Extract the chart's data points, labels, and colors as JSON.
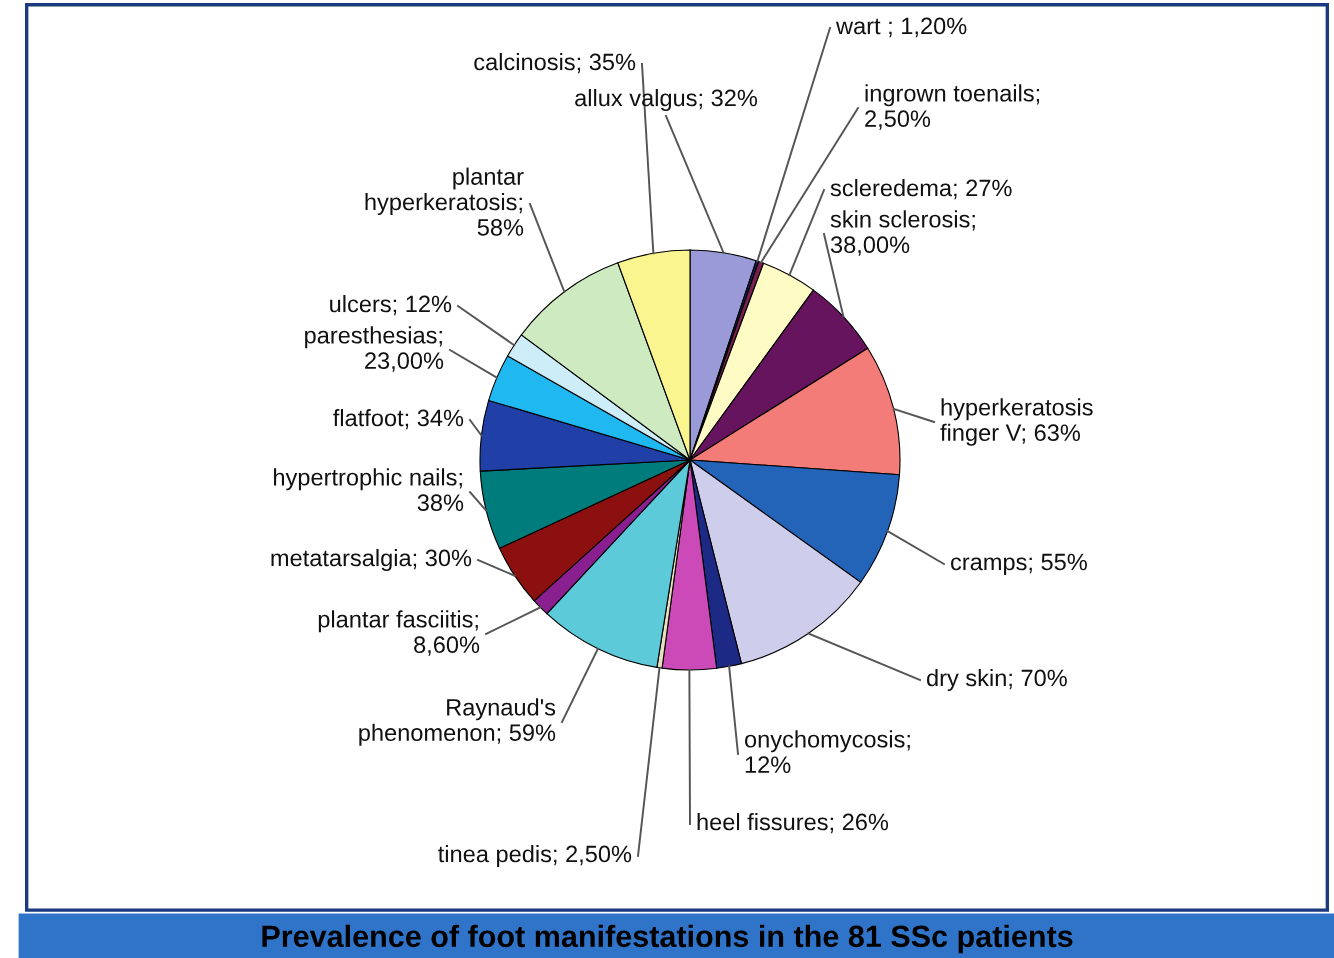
{
  "chart_data": {
    "type": "pie",
    "title": "Prevalence of foot manifestations in the 81 SSc patients",
    "categories": [
      "allux valgus; 32%",
      "wart ; 1,20%",
      "ingrown toenails;\n2,50%",
      "scleredema; 27%",
      "skin sclerosis;\n38,00%",
      "hyperkeratosis\nfinger V; 63%",
      "cramps; 55%",
      "dry skin; 70%",
      "onychomycosis;\n12%",
      "heel fissures; 26%",
      "tinea pedis; 2,50%",
      "Raynaud's\nphenomenon; 59%",
      "plantar fasciitis;\n8,60%",
      "metatarsalgia; 30%",
      "hypertrophic nails;\n38%",
      "flatfoot; 34%",
      "paresthesias;\n23,00%",
      "ulcers; 12%",
      "plantar\nhyperkeratosis;\n58%",
      "calcinosis; 35%"
    ],
    "values": [
      32,
      1.2,
      2.5,
      27,
      38,
      63,
      55,
      70,
      12,
      26,
      2.5,
      59,
      8.6,
      30,
      38,
      34,
      23,
      12,
      58,
      35
    ],
    "colors": [
      "#9a9ad8",
      "#22226e",
      "#7a2050",
      "#fffbc4",
      "#66145e",
      "#f47c78",
      "#2464b8",
      "#cfcdec",
      "#1c2a86",
      "#cc4ab8",
      "#e8e0c0",
      "#5ccad8",
      "#8a2090",
      "#8c1010",
      "#007c7c",
      "#2040a8",
      "#20b8f0",
      "#cdeef8",
      "#cdeac0",
      "#fbf590"
    ],
    "legend": false
  }
}
